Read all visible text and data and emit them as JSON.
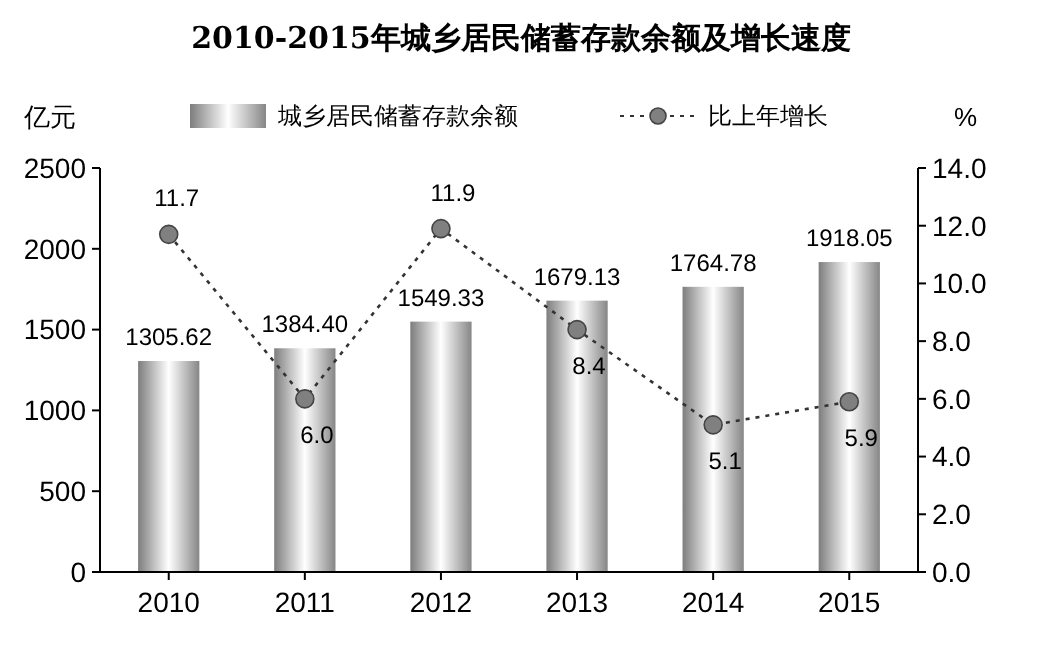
{
  "chart_data": {
    "type": "bar",
    "title": "2010-2015年城乡居民储蓄存款余额及增长速度",
    "ylabel": "亿元",
    "y2label": "%",
    "categories": [
      "2010",
      "2011",
      "2012",
      "2013",
      "2014",
      "2015"
    ],
    "series": [
      {
        "name": "城乡居民储蓄存款余额",
        "color": "#a6a6a6",
        "values": [
          1305.62,
          1384.4,
          1549.33,
          1679.13,
          1764.78,
          1918.05
        ],
        "value_labels": [
          "1305.62",
          "1384.40",
          "1549.33",
          "1679.13",
          "1764.78",
          "1918.05"
        ]
      },
      {
        "name": "比上年增长",
        "type": "line",
        "axis": "y2",
        "color": "#808080",
        "marker": "circle",
        "line_style": "dotted",
        "values": [
          11.7,
          6.0,
          11.9,
          8.4,
          5.1,
          5.9
        ],
        "value_labels": [
          "11.7",
          "6.0",
          "11.9",
          "8.4",
          "5.1",
          "5.9"
        ]
      }
    ],
    "ylim": [
      0,
      2500
    ],
    "yticks": [
      0,
      500,
      1000,
      1500,
      2000,
      2500
    ],
    "y2lim": [
      0,
      14
    ],
    "y2ticks": [
      {
        "value": 0,
        "label": "0.0"
      },
      {
        "value": 2,
        "label": "2.0"
      },
      {
        "value": 4,
        "label": "4.0"
      },
      {
        "value": 6,
        "label": "6.0"
      },
      {
        "value": 8,
        "label": "8.0"
      },
      {
        "value": 10,
        "label": "10.0"
      },
      {
        "value": 12,
        "label": "12.0"
      },
      {
        "value": 14,
        "label": "14.0"
      }
    ],
    "legend": "top",
    "grid": false
  }
}
